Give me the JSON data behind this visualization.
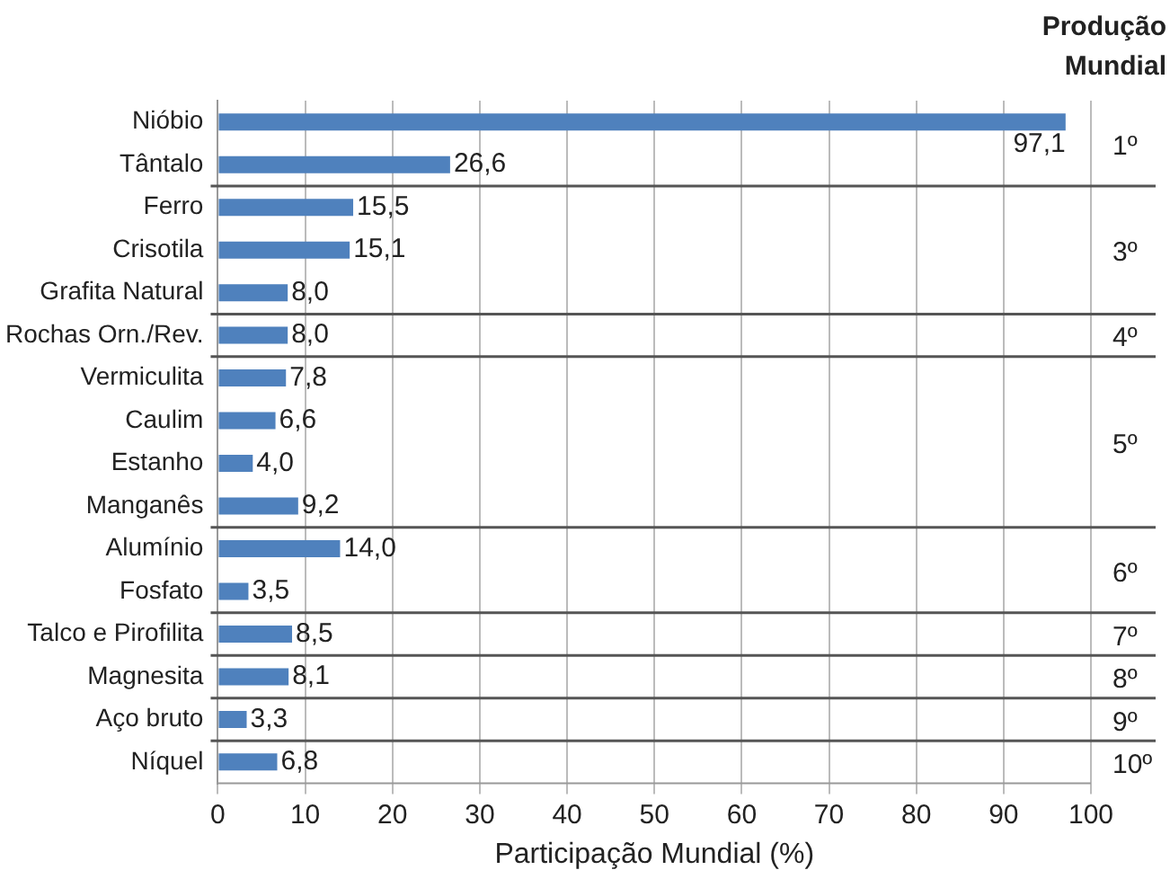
{
  "chart_data": {
    "type": "bar",
    "orientation": "horizontal",
    "xlabel": "Participação Mundial (%)",
    "categories": [
      "Nióbio",
      "Tântalo",
      "Ferro",
      "Crisotila",
      "Grafita Natural",
      "Rochas Orn./Rev.",
      "Vermiculita",
      "Caulim",
      "Estanho",
      "Manganês",
      "Alumínio",
      "Fosfato",
      "Talco e Pirofilita",
      "Magnesita",
      "Aço bruto",
      "Níquel"
    ],
    "values": [
      97.1,
      26.6,
      15.5,
      15.1,
      8.0,
      8.0,
      7.8,
      6.6,
      4.0,
      9.2,
      14.0,
      3.5,
      8.5,
      8.1,
      3.3,
      6.8
    ],
    "value_labels": [
      "97,1",
      "26,6",
      "15,5",
      "15,1",
      "8,0",
      "8,0",
      "7,8",
      "6,6",
      "4,0",
      "9,2",
      "14,0",
      "3,5",
      "8,5",
      "8,1",
      "3,3",
      "6,8"
    ],
    "color": "#4f81bd",
    "xlim": [
      0,
      100
    ],
    "xticks": [
      0,
      10,
      20,
      30,
      40,
      50,
      60,
      70,
      80,
      90,
      100
    ],
    "grid": "x",
    "legend": false,
    "annotations": [
      "Produção Mundial",
      "10º"
    ],
    "ref_lines": [
      {
        "axis": "y",
        "value": "Tântalo",
        "label": "1º"
      },
      {
        "axis": "y",
        "value": "Grafita Natural",
        "label": "3º"
      },
      {
        "axis": "y",
        "value": "Rochas Orn./Rev.",
        "label": "4º"
      },
      {
        "axis": "y",
        "value": "Manganês",
        "label": "5º"
      },
      {
        "axis": "y",
        "value": "Fosfato",
        "label": "6º"
      },
      {
        "axis": "y",
        "value": "Talco e Pirofilita",
        "label": "7º"
      },
      {
        "axis": "y",
        "value": "Magnesita",
        "label": "8º"
      },
      {
        "axis": "y",
        "value": "Aço bruto",
        "label": "9º"
      }
    ]
  }
}
